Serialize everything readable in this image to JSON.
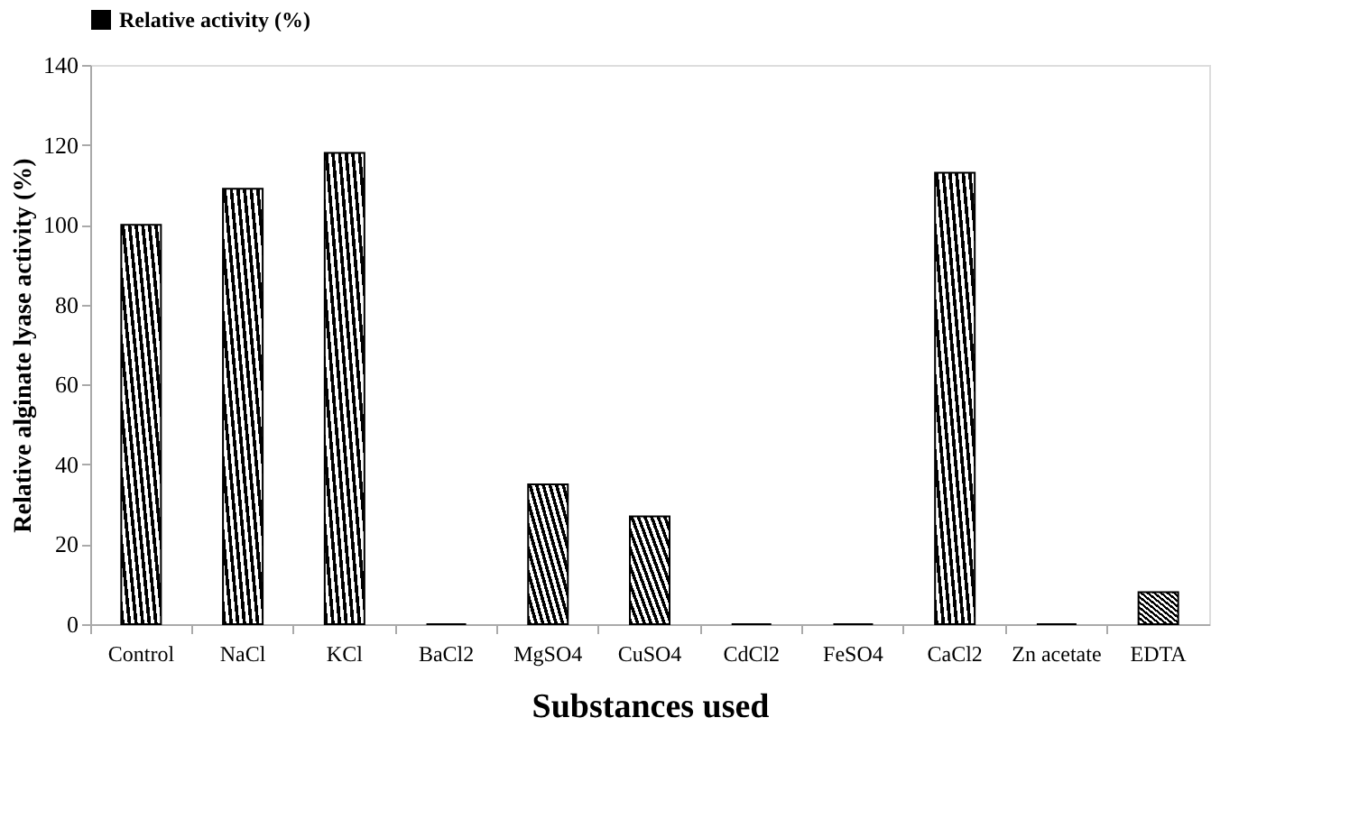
{
  "chart_data": {
    "type": "bar",
    "xlabel": "Substances used",
    "ylabel": "Relative alginate lyase activity (%)",
    "categories": [
      "Control",
      "NaCl",
      "KCl",
      "BaCl2",
      "MgSO4",
      "CuSO4",
      "CdCl2",
      "FeSO4",
      "CaCl2",
      "Zn acetate",
      "EDTA"
    ],
    "series": [
      {
        "name": "Relative activity (%)",
        "color": "#000000",
        "values": [
          100,
          109,
          118,
          0,
          35,
          27,
          0,
          0,
          113,
          0,
          8
        ]
      }
    ],
    "ylim": [
      0,
      140
    ],
    "yticks": [
      0,
      20,
      40,
      60,
      80,
      100,
      120,
      140
    ],
    "grid": false,
    "legend": "top"
  }
}
